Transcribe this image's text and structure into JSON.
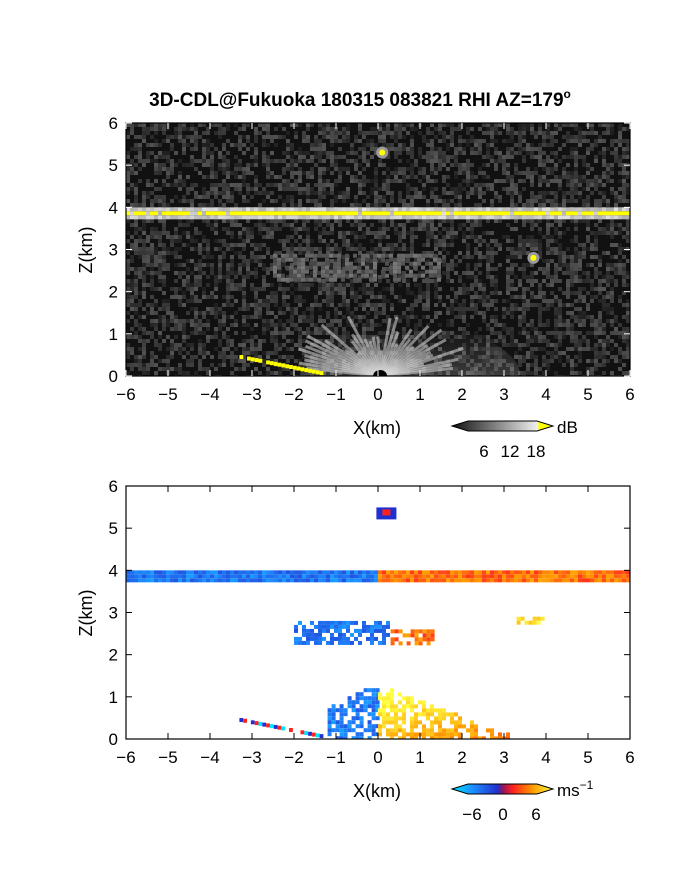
{
  "chart_data": [
    {
      "type": "heatmap",
      "title": "3D-CDL@Fukuoka 180315 083821 RHI AZ=179",
      "title_superscript": "o",
      "xlabel": "X(km)",
      "ylabel": "Z(km)",
      "xlim": [
        -6,
        6
      ],
      "ylim": [
        0,
        6
      ],
      "x_ticks": [
        "-6",
        "-5",
        "-4",
        "-3",
        "-2",
        "-1",
        "0",
        "1",
        "2",
        "3",
        "4",
        "5",
        "6"
      ],
      "y_ticks": [
        "0",
        "1",
        "2",
        "3",
        "4",
        "5",
        "6"
      ],
      "colorbar": {
        "unit": "dB",
        "ticks": [
          "6",
          "12",
          "18"
        ],
        "range": [
          0,
          21
        ]
      },
      "background": "#111111",
      "features": [
        {
          "name": "cloud layer",
          "x": [
            -6,
            6
          ],
          "z": [
            3.8,
            4.0
          ],
          "value_db": 18
        },
        {
          "name": "point target",
          "x": 0.1,
          "z": 5.3,
          "value_db": 15
        },
        {
          "name": "aerosol layer",
          "x": [
            -2.5,
            1.5
          ],
          "z": [
            2.3,
            2.9
          ],
          "value_db": 6
        },
        {
          "name": "small echo",
          "x": 3.7,
          "z": 2.8,
          "value_db": 8
        },
        {
          "name": "boundary layer fan",
          "x": [
            -1,
            2
          ],
          "z": [
            0,
            1.3
          ],
          "value_db": 12
        },
        {
          "name": "ground clutter",
          "x": [
            -3.3,
            -1.3
          ],
          "z": [
            0.45,
            0.05
          ],
          "value_db": 18
        }
      ]
    },
    {
      "type": "heatmap",
      "title": "",
      "xlabel": "X(km)",
      "ylabel": "Z(km)",
      "xlim": [
        -6,
        6
      ],
      "ylim": [
        0,
        6
      ],
      "x_ticks": [
        "-6",
        "-5",
        "-4",
        "-3",
        "-2",
        "-1",
        "0",
        "1",
        "2",
        "3",
        "4",
        "5",
        "6"
      ],
      "y_ticks": [
        "0",
        "1",
        "2",
        "3",
        "4",
        "5",
        "6"
      ],
      "colorbar": {
        "unit": "ms",
        "unit_superscript": "−1",
        "ticks": [
          "−6",
          "0",
          "6"
        ],
        "range": [
          -8,
          8
        ]
      },
      "background": "#ffffff",
      "features": [
        {
          "name": "cloud layer",
          "x": [
            -6,
            6
          ],
          "z": [
            3.8,
            4.0
          ],
          "velocity": [
            -4,
            3
          ]
        },
        {
          "name": "point target",
          "x": 0.2,
          "z": 5.35,
          "velocity": -4
        },
        {
          "name": "aerosol layer",
          "x": [
            -2,
            0.2
          ],
          "z": [
            2.3,
            2.8
          ],
          "velocity": -4
        },
        {
          "name": "aerosol layer",
          "x": [
            0.3,
            1.3
          ],
          "z": [
            2.3,
            2.6
          ],
          "velocity": 3
        },
        {
          "name": "small echo",
          "x": [
            3.3,
            3.9
          ],
          "z": [
            2.75,
            2.9
          ],
          "velocity": 7
        },
        {
          "name": "boundary layer",
          "x": [
            -1.2,
            0
          ],
          "z": [
            0,
            1.3
          ],
          "velocity": -4
        },
        {
          "name": "boundary layer",
          "x": [
            0,
            3.2
          ],
          "z": [
            0,
            1.2
          ],
          "velocity": 5
        },
        {
          "name": "ground clutter",
          "x": [
            -3.3,
            -1.3
          ],
          "z": [
            0.45,
            0.05
          ],
          "velocity": -3
        }
      ]
    }
  ]
}
